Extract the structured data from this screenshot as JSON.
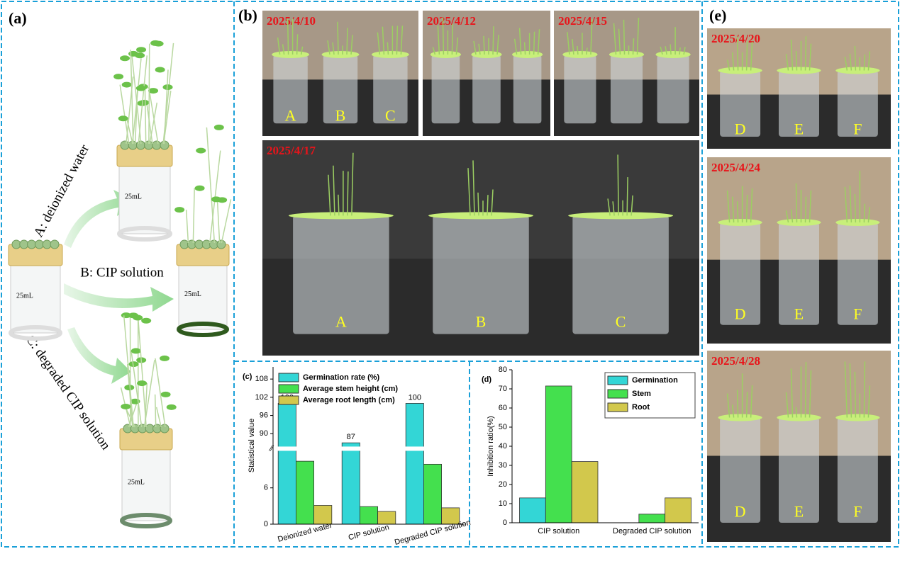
{
  "panels": {
    "a": {
      "label": "(a)",
      "arrows": [
        "A: deionized water",
        "B: CIP solution",
        "C: degraded CIP solution"
      ],
      "volume": "25mL"
    },
    "b": {
      "label": "(b)",
      "photos": [
        {
          "date": "2025/4/10",
          "samples": [
            "A",
            "B",
            "C"
          ]
        },
        {
          "date": "2025/4/12"
        },
        {
          "date": "2025/4/15"
        },
        {
          "date": "2025/4/17",
          "samples": [
            "A",
            "B",
            "C"
          ]
        }
      ]
    },
    "e": {
      "label": "(e)",
      "photos": [
        {
          "date": "2025/4/20",
          "samples": [
            "D",
            "E",
            "F"
          ]
        },
        {
          "date": "2025/4/24",
          "samples": [
            "D",
            "E",
            "F"
          ]
        },
        {
          "date": "2025/4/28",
          "samples": [
            "D",
            "E",
            "F"
          ]
        }
      ]
    }
  },
  "chart_data": [
    {
      "type": "bar",
      "panel_label": "(c)",
      "y_label": "Statistical value",
      "categories": [
        "Deionized water",
        "CIP solution",
        "Degraded CIP solution"
      ],
      "series": [
        {
          "name": "Germination rate (%)",
          "color": "#33d6d6",
          "values": [
            100,
            87,
            100
          ],
          "show_values": true
        },
        {
          "name": "Average stem height (cm)",
          "color": "#44e04e",
          "values": [
            10.4,
            2.9,
            9.9
          ]
        },
        {
          "name": "Average root length (cm)",
          "color": "#d2c84c",
          "values": [
            3.1,
            2.1,
            2.7
          ]
        }
      ],
      "ylim": [
        0,
        112
      ],
      "axis_break": [
        12,
        86
      ],
      "yticks": [
        0,
        6,
        90,
        96,
        102,
        108
      ],
      "legend": "upper-left"
    },
    {
      "type": "bar",
      "panel_label": "(d)",
      "y_label": "Inhibition ratio(%)",
      "categories": [
        "CIP solution",
        "Degraded CIP solution"
      ],
      "series": [
        {
          "name": "Germination",
          "color": "#33d6d6",
          "values": [
            13,
            0
          ]
        },
        {
          "name": "Stem",
          "color": "#44e04e",
          "values": [
            71.5,
            4.5
          ]
        },
        {
          "name": "Root",
          "color": "#d2c84c",
          "values": [
            32,
            13
          ]
        }
      ],
      "ylim": [
        0,
        80
      ],
      "yticks": [
        0,
        10,
        20,
        30,
        40,
        50,
        60,
        70,
        80
      ],
      "legend": "upper-right"
    }
  ]
}
